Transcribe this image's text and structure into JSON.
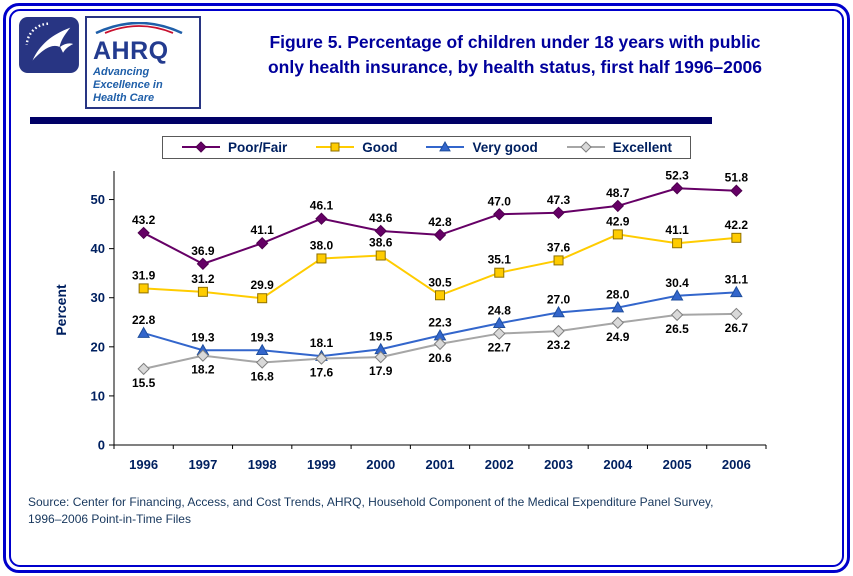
{
  "logos": {
    "ahrq_acronym": "AHRQ",
    "ahrq_tagline_lines": [
      "Advancing",
      "Excellence in",
      "Health Care"
    ]
  },
  "header": {
    "title_lines": [
      "Figure 5. Percentage of children under 18 years with public",
      "only health insurance, by health status, first half 1996–2006"
    ]
  },
  "colors": {
    "frame_blue": "#0000CC",
    "title_blue": "#00009C",
    "axis_text_navy": "#002060",
    "divider_navy": "#000066"
  },
  "chart_data": {
    "type": "line",
    "categories": [
      "1996",
      "1997",
      "1998",
      "1999",
      "2000",
      "2001",
      "2002",
      "2003",
      "2004",
      "2005",
      "2006"
    ],
    "series": [
      {
        "name": "Poor/Fair",
        "marker": "diamond",
        "color": "#660066",
        "marker_fill": "#660066",
        "marker_stroke": "#4D004D",
        "label_position": "above",
        "values": [
          43.2,
          36.9,
          41.1,
          46.1,
          43.6,
          42.8,
          47.0,
          47.3,
          48.7,
          52.3,
          51.8
        ]
      },
      {
        "name": "Good",
        "marker": "square",
        "color": "#FFCC00",
        "marker_fill": "#FFCC00",
        "marker_stroke": "#8F7000",
        "label_position": "above",
        "values": [
          31.9,
          31.2,
          29.9,
          38.0,
          38.6,
          30.5,
          35.1,
          37.6,
          42.9,
          41.1,
          42.2
        ]
      },
      {
        "name": "Very good",
        "marker": "triangle",
        "color": "#3366CC",
        "marker_fill": "#3366CC",
        "marker_stroke": "#1F4E9C",
        "label_position": "above",
        "values": [
          22.8,
          19.3,
          19.3,
          18.1,
          19.5,
          22.3,
          24.8,
          27.0,
          28.0,
          30.4,
          31.1
        ]
      },
      {
        "name": "Excellent",
        "marker": "diamond",
        "color": "#A6A6A6",
        "marker_fill": "#D9D9D9",
        "marker_stroke": "#7F7F7F",
        "label_position": "below",
        "values": [
          15.5,
          18.2,
          16.8,
          17.6,
          17.9,
          20.6,
          22.7,
          23.2,
          24.9,
          26.5,
          26.7
        ]
      }
    ],
    "title": "Figure 5. Percentage of children under 18 years with public only health insurance, by health status, first half 1996–2006",
    "xlabel": "",
    "ylabel": "Percent",
    "ylim": [
      0,
      55
    ],
    "yticks": [
      0,
      10,
      20,
      30,
      40,
      50
    ],
    "grid": false,
    "legend_position": "top"
  },
  "footer": {
    "source_lines": [
      "Source: Center for Financing, Access, and Cost Trends, AHRQ, Household Component of the Medical Expenditure Panel Survey,",
      "1996–2006 Point-in-Time Files"
    ]
  }
}
